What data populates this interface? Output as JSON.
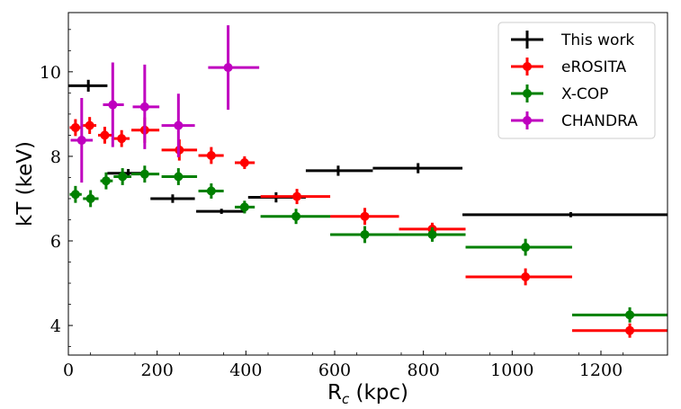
{
  "chart_data": {
    "type": "scatter",
    "xlabel": "R",
    "xlabel_sub": "c",
    "xlabel_unit": " (kpc)",
    "ylabel": "kT (keV)",
    "xlim": [
      0,
      1350
    ],
    "ylim": [
      3.3,
      11.4
    ],
    "xticks": [
      {
        "value": 0,
        "label": "0"
      },
      {
        "value": 200,
        "label": "200"
      },
      {
        "value": 400,
        "label": "400"
      },
      {
        "value": 600,
        "label": "600"
      },
      {
        "value": 800,
        "label": "800"
      },
      {
        "value": 1000,
        "label": "1000"
      },
      {
        "value": 1200,
        "label": "1200"
      }
    ],
    "yticks": [
      {
        "value": 4,
        "label": "4"
      },
      {
        "value": 6,
        "label": "6"
      },
      {
        "value": 8,
        "label": "8"
      },
      {
        "value": 10,
        "label": "10"
      }
    ],
    "grid": false,
    "legend_position": "top-right",
    "series": [
      {
        "name": "This work",
        "color": "#000000",
        "marker": "none",
        "points": [
          {
            "x": 45,
            "xlo": 0,
            "xhi": 88,
            "y": 9.67,
            "yerr": 0.14
          },
          {
            "x": 135,
            "xlo": 88,
            "xhi": 178,
            "y": 7.6,
            "yerr": 0.1
          },
          {
            "x": 235,
            "xlo": 185,
            "xhi": 285,
            "y": 7.0,
            "yerr": 0.1
          },
          {
            "x": 345,
            "xlo": 288,
            "xhi": 400,
            "y": 6.7,
            "yerr": 0.06
          },
          {
            "x": 468,
            "xlo": 405,
            "xhi": 535,
            "y": 7.03,
            "yerr": 0.12
          },
          {
            "x": 608,
            "xlo": 535,
            "xhi": 686,
            "y": 7.66,
            "yerr": 0.12
          },
          {
            "x": 788,
            "xlo": 686,
            "xhi": 888,
            "y": 7.72,
            "yerr": 0.12
          },
          {
            "x": 1132,
            "xlo": 888,
            "xhi": 1350,
            "y": 6.62,
            "yerr": 0.06
          }
        ]
      },
      {
        "name": "eROSITA",
        "color": "#ff0000",
        "marker": "circle",
        "points": [
          {
            "x": 16,
            "xlo": 3,
            "xhi": 30,
            "y": 8.68,
            "yerr": 0.2
          },
          {
            "x": 48,
            "xlo": 33,
            "xhi": 63,
            "y": 8.73,
            "yerr": 0.2
          },
          {
            "x": 82,
            "xlo": 67,
            "xhi": 98,
            "y": 8.5,
            "yerr": 0.2
          },
          {
            "x": 120,
            "xlo": 102,
            "xhi": 138,
            "y": 8.42,
            "yerr": 0.2
          },
          {
            "x": 172,
            "xlo": 142,
            "xhi": 205,
            "y": 8.62,
            "yerr": 0.3
          },
          {
            "x": 250,
            "xlo": 210,
            "xhi": 290,
            "y": 8.15,
            "yerr": 0.25
          },
          {
            "x": 322,
            "xlo": 293,
            "xhi": 350,
            "y": 8.02,
            "yerr": 0.2
          },
          {
            "x": 397,
            "xlo": 375,
            "xhi": 420,
            "y": 7.85,
            "yerr": 0.15
          },
          {
            "x": 515,
            "xlo": 433,
            "xhi": 590,
            "y": 7.05,
            "yerr": 0.18
          },
          {
            "x": 668,
            "xlo": 590,
            "xhi": 745,
            "y": 6.58,
            "yerr": 0.2
          },
          {
            "x": 820,
            "xlo": 745,
            "xhi": 895,
            "y": 6.28,
            "yerr": 0.15
          },
          {
            "x": 1030,
            "xlo": 895,
            "xhi": 1135,
            "y": 5.15,
            "yerr": 0.2
          },
          {
            "x": 1265,
            "xlo": 1135,
            "xhi": 1350,
            "y": 3.88,
            "yerr": 0.17
          }
        ]
      },
      {
        "name": "X-COP",
        "color": "#008000",
        "marker": "circle",
        "points": [
          {
            "x": 16,
            "xlo": 3,
            "xhi": 30,
            "y": 7.1,
            "yerr": 0.2
          },
          {
            "x": 50,
            "xlo": 33,
            "xhi": 68,
            "y": 7.0,
            "yerr": 0.2
          },
          {
            "x": 85,
            "xlo": 72,
            "xhi": 100,
            "y": 7.42,
            "yerr": 0.2
          },
          {
            "x": 122,
            "xlo": 102,
            "xhi": 142,
            "y": 7.52,
            "yerr": 0.2
          },
          {
            "x": 172,
            "xlo": 142,
            "xhi": 205,
            "y": 7.58,
            "yerr": 0.2
          },
          {
            "x": 248,
            "xlo": 210,
            "xhi": 290,
            "y": 7.52,
            "yerr": 0.2
          },
          {
            "x": 322,
            "xlo": 293,
            "xhi": 350,
            "y": 7.18,
            "yerr": 0.18
          },
          {
            "x": 397,
            "xlo": 375,
            "xhi": 420,
            "y": 6.8,
            "yerr": 0.15
          },
          {
            "x": 513,
            "xlo": 433,
            "xhi": 590,
            "y": 6.58,
            "yerr": 0.18
          },
          {
            "x": 668,
            "xlo": 590,
            "xhi": 745,
            "y": 6.15,
            "yerr": 0.2
          },
          {
            "x": 820,
            "xlo": 745,
            "xhi": 895,
            "y": 6.15,
            "yerr": 0.17
          },
          {
            "x": 1030,
            "xlo": 895,
            "xhi": 1135,
            "y": 5.85,
            "yerr": 0.2
          },
          {
            "x": 1265,
            "xlo": 1135,
            "xhi": 1350,
            "y": 4.25,
            "yerr": 0.18
          }
        ]
      },
      {
        "name": "CHANDRA",
        "color": "#bf00bf",
        "marker": "circle",
        "points": [
          {
            "x": 30,
            "xlo": 5,
            "xhi": 55,
            "y": 8.38,
            "yerr": 1.0
          },
          {
            "x": 100,
            "xlo": 78,
            "xhi": 125,
            "y": 9.22,
            "yerr": 1.0
          },
          {
            "x": 172,
            "xlo": 145,
            "xhi": 205,
            "y": 9.17,
            "yerr": 1.0
          },
          {
            "x": 248,
            "xlo": 210,
            "xhi": 285,
            "y": 8.73,
            "yerr": 0.75
          },
          {
            "x": 360,
            "xlo": 315,
            "xhi": 430,
            "y": 10.1,
            "yerr": 1.0
          }
        ]
      }
    ]
  }
}
